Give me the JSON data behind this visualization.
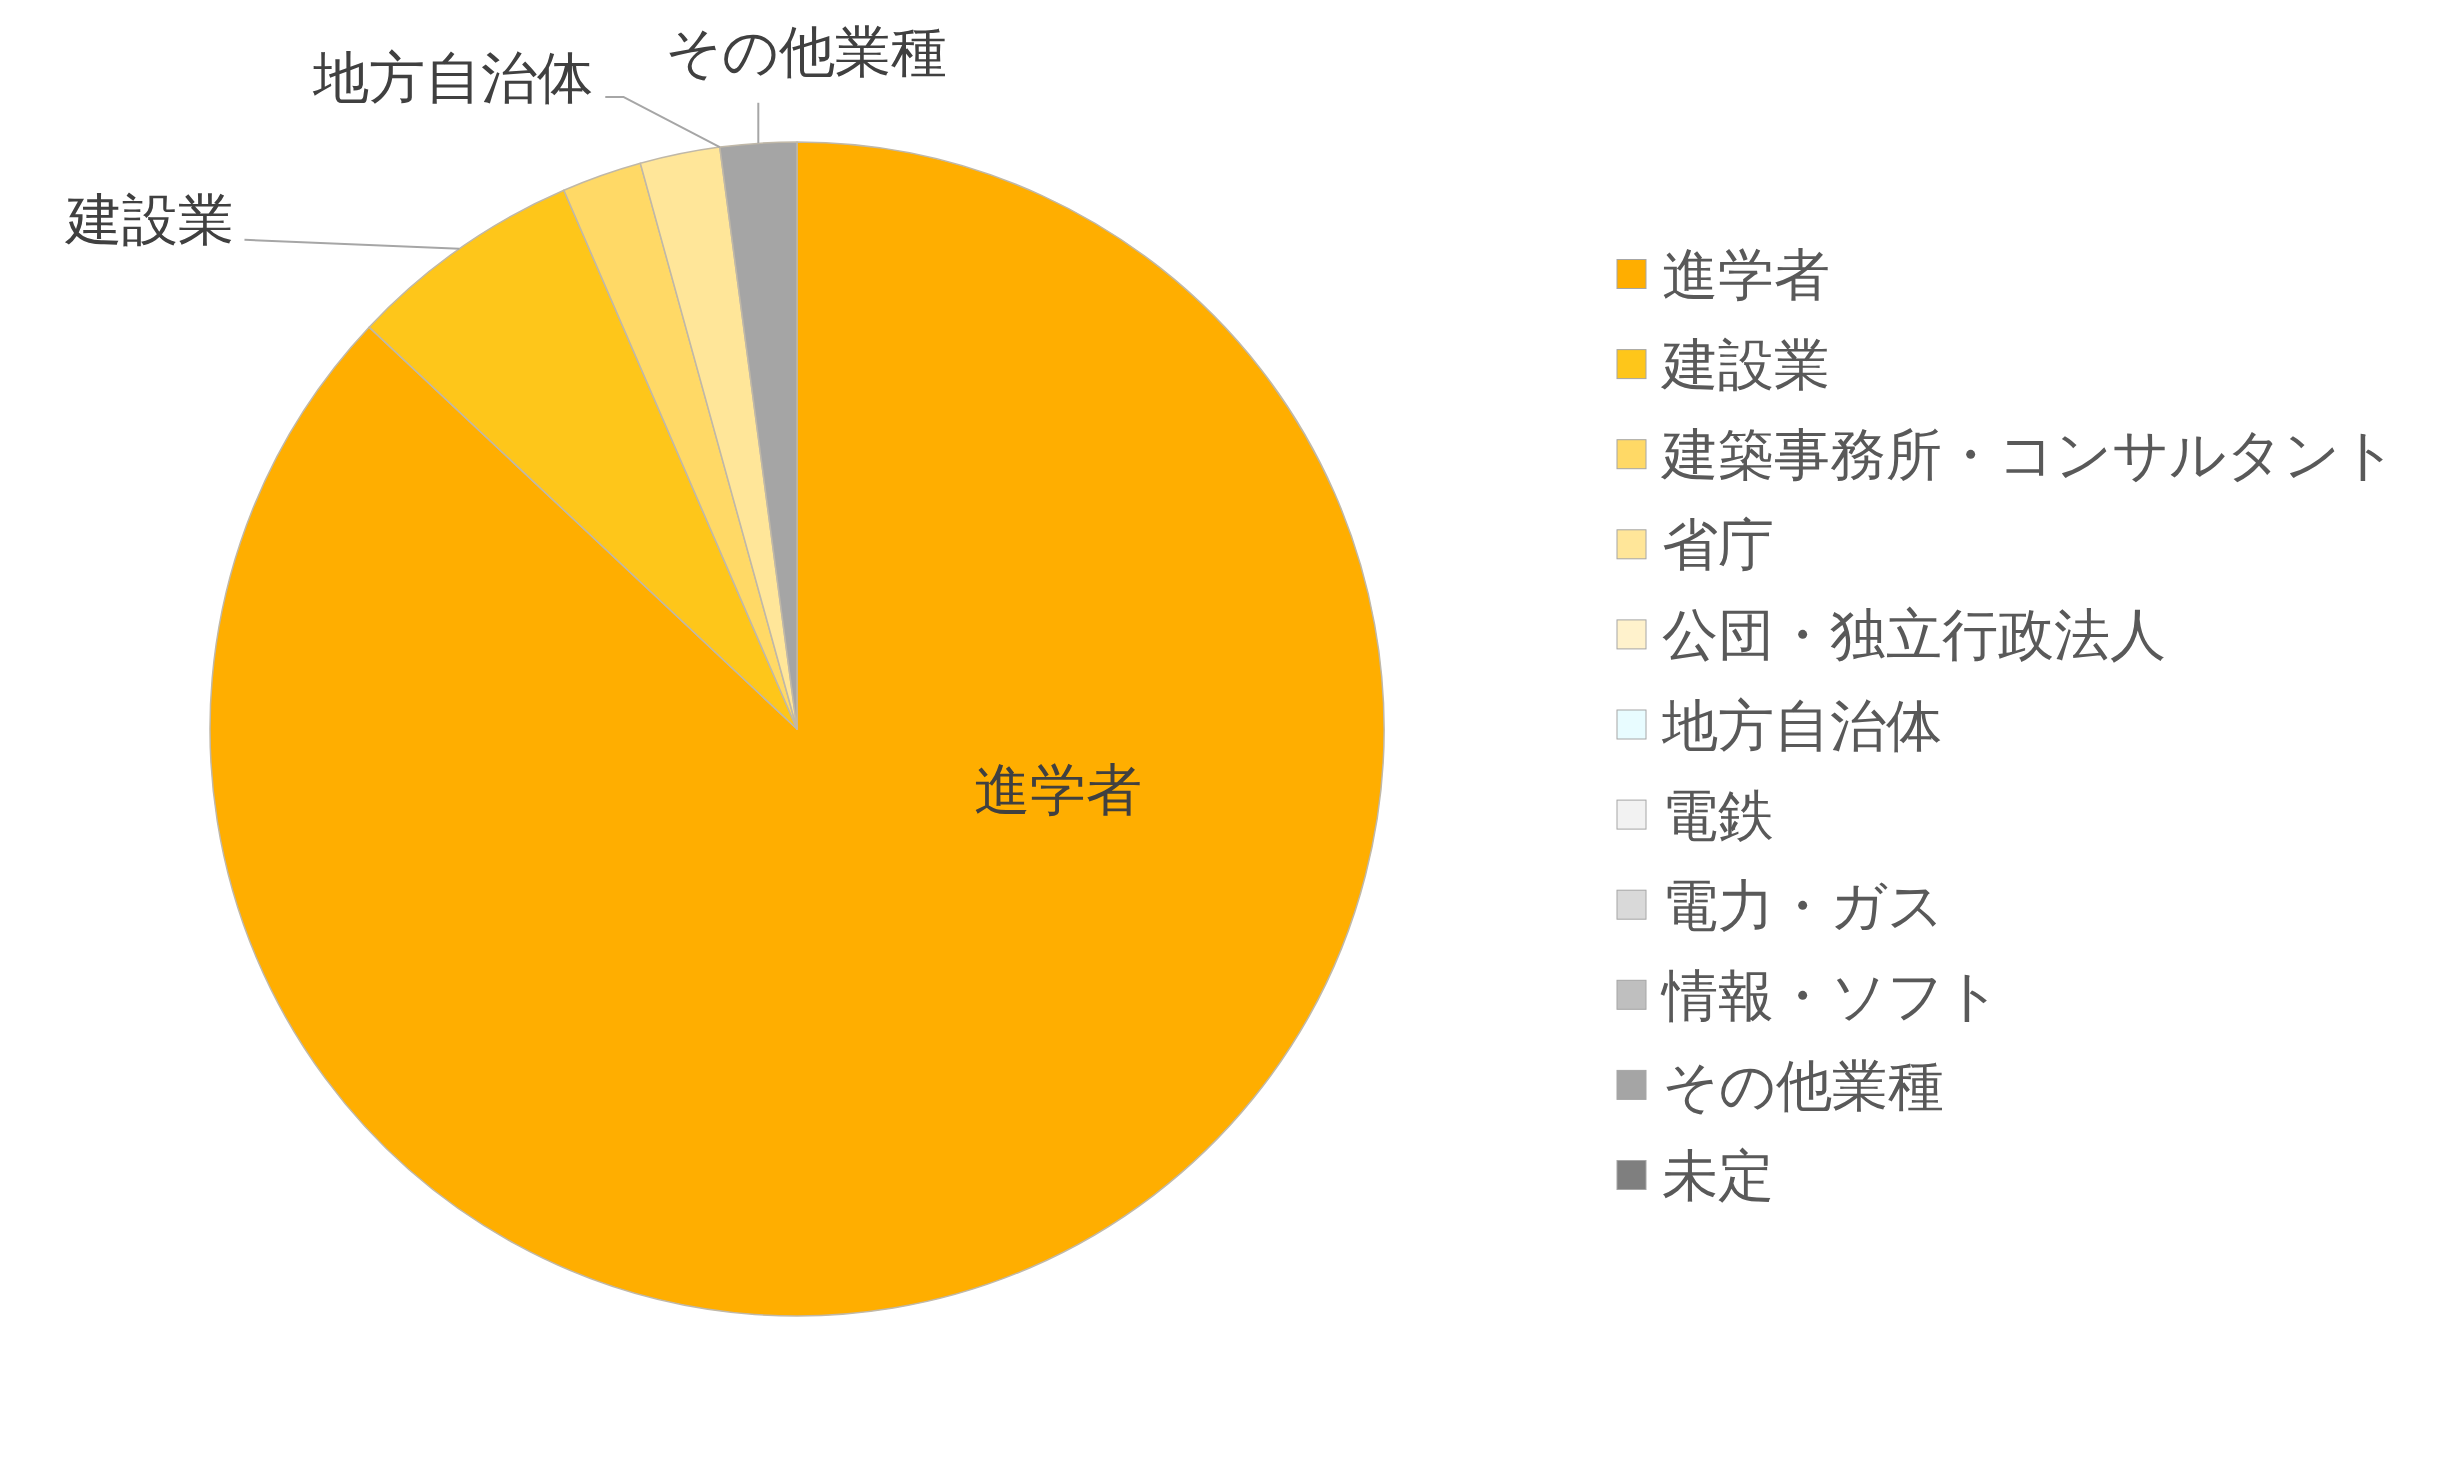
{
  "chart_data": {
    "type": "pie",
    "categories": [
      "進学者",
      "建設業",
      "建築事務所・コンサルタント",
      "省庁",
      "公団・独立行政法人",
      "地方自治体",
      "電鉄",
      "電力・ガス",
      "情報・ソフト",
      "その他業種",
      "未定"
    ],
    "values": [
      87.0,
      6.5,
      2.2,
      2.2,
      0,
      0,
      0,
      0,
      0,
      2.1,
      0
    ],
    "colors": [
      "#ffae00",
      "#fec61a",
      "#ffd966",
      "#ffe699",
      "#fff2cc",
      "#e8fcff",
      "#f2f2f2",
      "#d9d9d9",
      "#bfbfbf",
      "#a5a5a5",
      "#7f7f7f"
    ],
    "value_labels": [
      "進学者",
      "建設業",
      null,
      null,
      null,
      "地方自治体",
      null,
      null,
      null,
      "その他業種",
      null
    ],
    "legend": "right"
  }
}
